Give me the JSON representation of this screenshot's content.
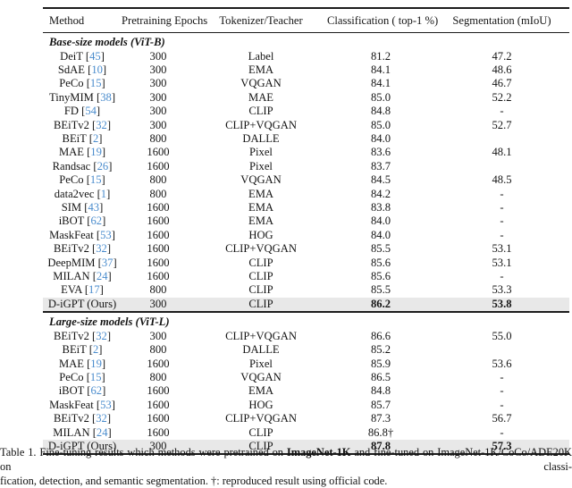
{
  "colors": {
    "citation_blue": "#4a8ccd",
    "highlight_row": "#e8e8e8",
    "rule": "#1c1c1c"
  },
  "table": {
    "columns": [
      "Method",
      "Pretraining Epochs",
      "Tokenizer/Teacher",
      "Classification ( top-1 %)",
      "Segmentation (mIoU)"
    ],
    "sections": [
      {
        "header": "Base-size models (ViT-B)",
        "rows": [
          {
            "method": "DeiT",
            "cite": "45",
            "epochs": "300",
            "tokenizer": "Label",
            "cls": "81.2",
            "seg": "47.2"
          },
          {
            "method": "SdAE",
            "cite": "10",
            "epochs": "300",
            "tokenizer": "EMA",
            "cls": "84.1",
            "seg": "48.6"
          },
          {
            "method": "PeCo",
            "cite": "15",
            "epochs": "300",
            "tokenizer": "VQGAN",
            "cls": "84.1",
            "seg": "46.7"
          },
          {
            "method": "TinyMIM",
            "cite": "38",
            "epochs": "300",
            "tokenizer": "MAE",
            "cls": "85.0",
            "seg": "52.2"
          },
          {
            "method": "FD",
            "cite": "54",
            "epochs": "300",
            "tokenizer": "CLIP",
            "cls": "84.8",
            "seg": "-"
          },
          {
            "method": "BEiTv2",
            "cite": "32",
            "epochs": "300",
            "tokenizer": "CLIP+VQGAN",
            "cls": "85.0",
            "seg": "52.7"
          },
          {
            "method": "BEiT",
            "cite": "2",
            "epochs": "800",
            "tokenizer": "DALLE",
            "cls": "84.0",
            "seg": ""
          },
          {
            "method": "MAE",
            "cite": "19",
            "epochs": "1600",
            "tokenizer": "Pixel",
            "cls": "83.6",
            "seg": "48.1"
          },
          {
            "method": "Randsac",
            "cite": "26",
            "epochs": "1600",
            "tokenizer": "Pixel",
            "cls": "83.7",
            "seg": ""
          },
          {
            "method": "PeCo",
            "cite": "15",
            "epochs": "800",
            "tokenizer": "VQGAN",
            "cls": "84.5",
            "seg": "48.5"
          },
          {
            "method": "data2vec",
            "cite": "1",
            "epochs": "800",
            "tokenizer": "EMA",
            "cls": "84.2",
            "seg": "-"
          },
          {
            "method": "SIM",
            "cite": "43",
            "epochs": "1600",
            "tokenizer": "EMA",
            "cls": "83.8",
            "seg": "-"
          },
          {
            "method": "iBOT",
            "cite": "62",
            "epochs": "1600",
            "tokenizer": "EMA",
            "cls": "84.0",
            "seg": "-"
          },
          {
            "method": "MaskFeat",
            "cite": "53",
            "epochs": "1600",
            "tokenizer": "HOG",
            "cls": "84.0",
            "seg": "-"
          },
          {
            "method": "BEiTv2",
            "cite": "32",
            "epochs": "1600",
            "tokenizer": "CLIP+VQGAN",
            "cls": "85.5",
            "seg": "53.1"
          },
          {
            "method": "DeepMIM",
            "cite": "37",
            "epochs": "1600",
            "tokenizer": "CLIP",
            "cls": "85.6",
            "seg": "53.1"
          },
          {
            "method": "MILAN",
            "cite": "24",
            "epochs": "1600",
            "tokenizer": "CLIP",
            "cls": "85.6",
            "seg": "-"
          },
          {
            "method": "EVA",
            "cite": "17",
            "epochs": "800",
            "tokenizer": "CLIP",
            "cls": "85.5",
            "seg": "53.3"
          },
          {
            "method": "D-iGPT (Ours)",
            "cite": null,
            "epochs": "300",
            "tokenizer": "CLIP",
            "cls": "86.2",
            "seg": "53.8",
            "highlight": true,
            "bold": true
          }
        ]
      },
      {
        "header": "Large-size models (ViT-L)",
        "rows": [
          {
            "method": "BEiTv2",
            "cite": "32",
            "epochs": "300",
            "tokenizer": "CLIP+VQGAN",
            "cls": "86.6",
            "seg": "55.0"
          },
          {
            "method": "BEiT",
            "cite": "2",
            "epochs": "800",
            "tokenizer": "DALLE",
            "cls": "85.2",
            "seg": ""
          },
          {
            "method": "MAE",
            "cite": "19",
            "epochs": "1600",
            "tokenizer": "Pixel",
            "cls": "85.9",
            "seg": "53.6"
          },
          {
            "method": "PeCo",
            "cite": "15",
            "epochs": "800",
            "tokenizer": "VQGAN",
            "cls": "86.5",
            "seg": "-"
          },
          {
            "method": "iBOT",
            "cite": "62",
            "epochs": "1600",
            "tokenizer": "EMA",
            "cls": "84.8",
            "seg": "-"
          },
          {
            "method": "MaskFeat",
            "cite": "53",
            "epochs": "1600",
            "tokenizer": "HOG",
            "cls": "85.7",
            "seg": "-"
          },
          {
            "method": "BEiTv2",
            "cite": "32",
            "epochs": "1600",
            "tokenizer": "CLIP+VQGAN",
            "cls": "87.3",
            "seg": "56.7"
          },
          {
            "method": "MILAN",
            "cite": "24",
            "epochs": "1600",
            "tokenizer": "CLIP",
            "cls": "86.8†",
            "seg": "-"
          },
          {
            "method": "D-iGPT (Ours)",
            "cite": null,
            "epochs": "300",
            "tokenizer": "CLIP",
            "cls": "87.8",
            "seg": "57.3",
            "highlight": true,
            "bold": true
          }
        ]
      }
    ]
  },
  "caption": {
    "line1_pre": "Table 1. Fine-tuning results which methods were pretrained on ",
    "line1_bold": "ImageNet-1K",
    "line1_post": " and fine-tuned on ImageNet-1K/CoCo/ADE20K on classi-",
    "line2": "fication, detection, and semantic segmentation. †: reproduced result using official code."
  }
}
